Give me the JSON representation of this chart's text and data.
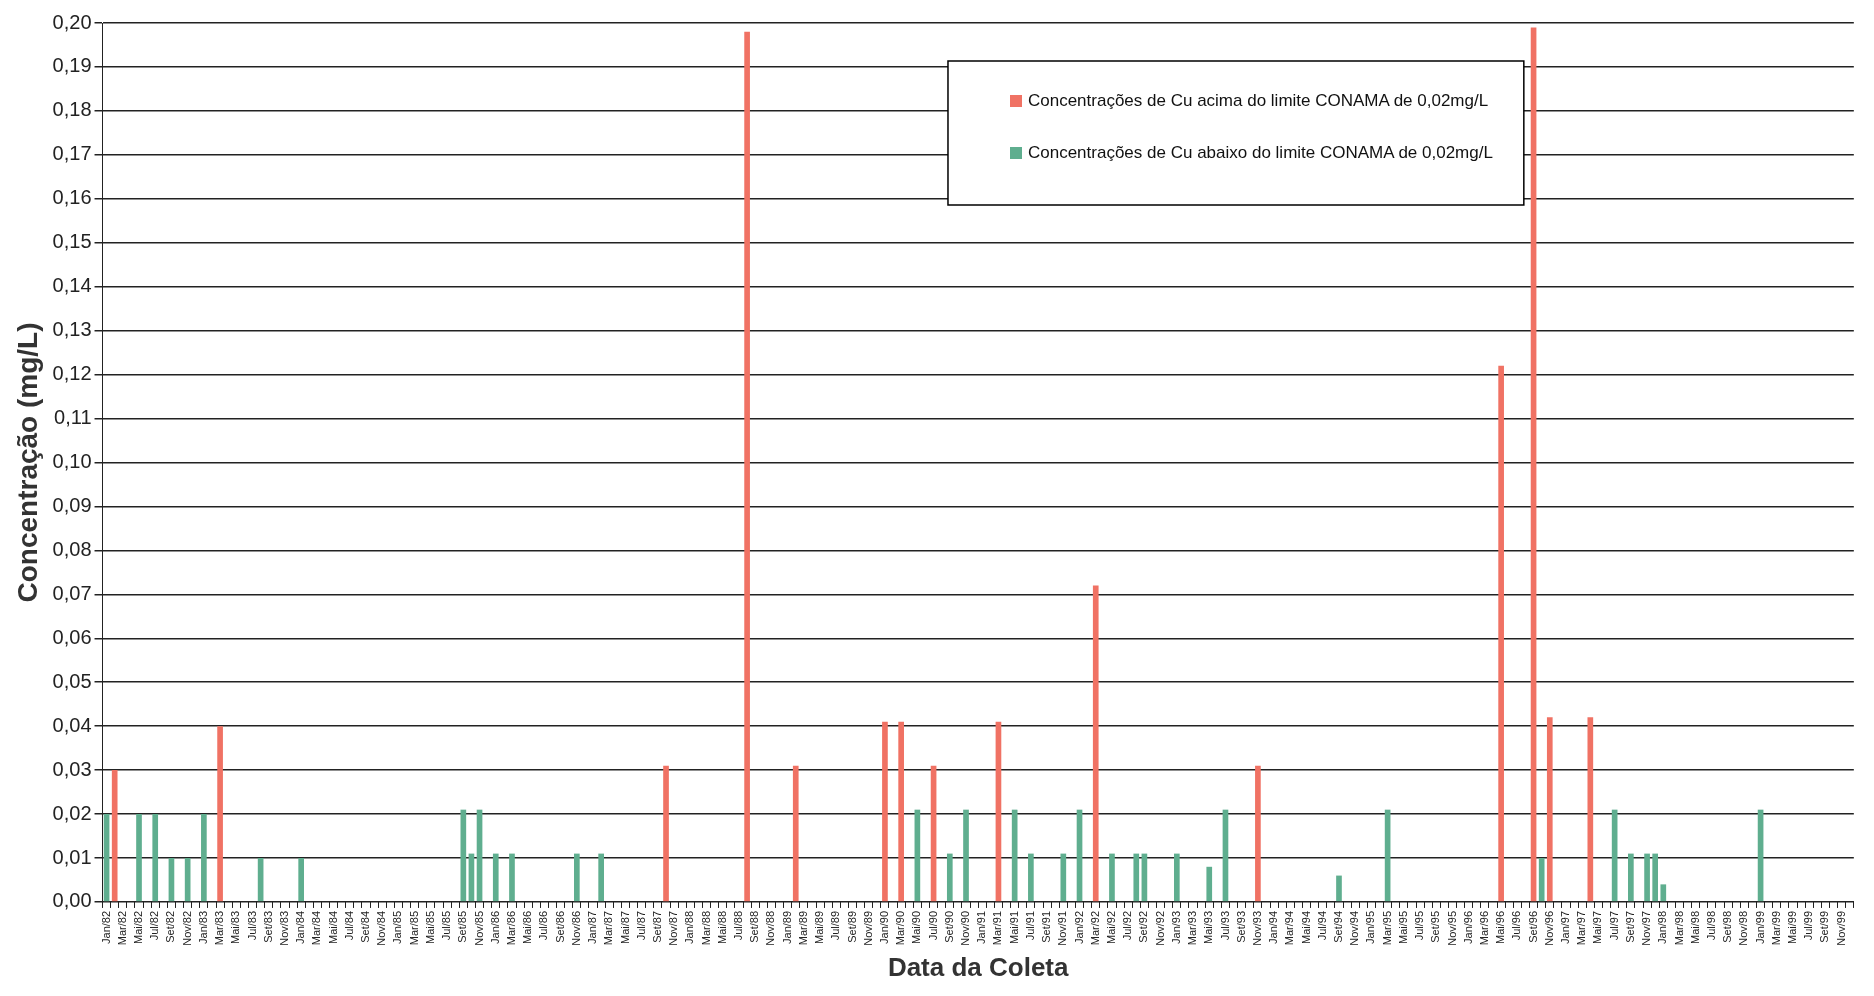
{
  "chart_data": {
    "type": "bar",
    "xlabel": "Data da Coleta",
    "ylabel": "Concentração (mg/L)",
    "categories": [
      "Jan/82",
      null,
      "Mar/82",
      null,
      "Mai/82",
      null,
      "Jul/82",
      null,
      "Set/82",
      null,
      "Nov/82",
      null,
      "Jan/83",
      null,
      "Mar/83",
      null,
      "Mai/83",
      null,
      "Jul/83",
      null,
      "Set/83",
      null,
      "Nov/83",
      null,
      "Jan/84",
      null,
      "Mar/84",
      null,
      "Mai/84",
      null,
      "Jul/84",
      null,
      "Set/84",
      null,
      "Nov/84",
      null,
      "Jan/85",
      null,
      "Mar/85",
      null,
      "Mai/85",
      null,
      "Jul/85",
      null,
      "Set/85",
      null,
      "Nov/85",
      null,
      "Jan/86",
      null,
      "Mar/86",
      null,
      "Mai/86",
      null,
      "Jul/86",
      null,
      "Set/86",
      null,
      "Nov/86",
      null,
      "Jan/87",
      null,
      "Mar/87",
      null,
      "Mai/87",
      null,
      "Jul/87",
      null,
      "Set/87",
      null,
      "Nov/87",
      null,
      "Jan/88",
      null,
      "Mar/88",
      null,
      "Mai/88",
      null,
      "Jul/88",
      null,
      "Set/88",
      null,
      "Nov/88",
      null,
      "Jan/89",
      null,
      "Mar/89",
      null,
      "Mai/89",
      null,
      "Jul/89",
      null,
      "Set/89",
      null,
      "Nov/89",
      null,
      "Jan/90",
      null,
      "Mar/90",
      null,
      "Mai/90",
      null,
      "Jul/90",
      null,
      "Set/90",
      null,
      "Nov/90",
      null,
      "Jan/91",
      null,
      "Mar/91",
      null,
      "Mai/91",
      null,
      "Jul/91",
      null,
      "Set/91",
      null,
      "Nov/91",
      null,
      "Jan/92",
      null,
      "Mar/92",
      null,
      "Mai/92",
      null,
      "Jul/92",
      null,
      "Set/92",
      null,
      "Nov/92",
      null,
      "Jan/93",
      null,
      "Mar/93",
      null,
      "Mai/93",
      null,
      "Jul/93",
      null,
      "Set/93",
      null,
      "Nov/93",
      null,
      "Jan/94",
      null,
      "Mar/94",
      null,
      "Mai/94",
      null,
      "Jul/94",
      null,
      "Set/94",
      null,
      "Nov/94",
      null,
      "Jan/95",
      null,
      "Mar/95",
      null,
      "Mai/95",
      null,
      "Jul/95",
      null,
      "Set/95",
      null,
      "Nov/95",
      null,
      "Jan/96",
      null,
      "Mar/96",
      null,
      "Mai/96",
      null,
      "Jul/96",
      null,
      "Set/96",
      null,
      "Nov/96",
      null,
      "Jan/97",
      null,
      "Mar/97",
      null,
      "Mai/97",
      null,
      "Jul/97",
      null,
      "Set/97",
      null,
      "Nov/97",
      null,
      "Jan/98",
      null,
      "Mar/98",
      null,
      "Mai/98",
      null,
      "Jul/98",
      null,
      "Set/98",
      null,
      "Nov/98",
      null,
      "Jan/99",
      null,
      "Mar/99",
      null,
      "Mai/99",
      null,
      "Jul/99",
      null,
      "Set/99",
      null,
      "Nov/99",
      null
    ],
    "series": [
      {
        "name": "Concentrações de Cu acima do limite CONAMA de 0,02mg/L",
        "color": "#f07264",
        "values": [
          null,
          0.03,
          null,
          null,
          null,
          null,
          null,
          null,
          null,
          null,
          null,
          null,
          null,
          null,
          0.04,
          null,
          null,
          null,
          null,
          null,
          null,
          null,
          null,
          null,
          null,
          null,
          null,
          null,
          null,
          null,
          null,
          null,
          null,
          null,
          null,
          null,
          null,
          null,
          null,
          null,
          null,
          null,
          null,
          null,
          null,
          null,
          null,
          null,
          null,
          null,
          null,
          null,
          null,
          null,
          null,
          null,
          null,
          null,
          null,
          null,
          null,
          null,
          null,
          null,
          null,
          null,
          null,
          null,
          null,
          0.031,
          null,
          null,
          null,
          null,
          null,
          null,
          null,
          null,
          null,
          0.198,
          null,
          null,
          null,
          null,
          null,
          0.031,
          null,
          null,
          null,
          null,
          null,
          null,
          null,
          null,
          null,
          null,
          0.041,
          null,
          0.041,
          null,
          null,
          null,
          0.031,
          null,
          null,
          null,
          null,
          null,
          null,
          null,
          0.041,
          null,
          null,
          null,
          null,
          null,
          null,
          null,
          null,
          null,
          null,
          null,
          0.072,
          null,
          null,
          null,
          null,
          null,
          null,
          null,
          null,
          null,
          null,
          null,
          null,
          null,
          null,
          null,
          null,
          null,
          null,
          null,
          0.031,
          null,
          null,
          null,
          null,
          null,
          null,
          null,
          null,
          null,
          null,
          null,
          null,
          null,
          null,
          null,
          null,
          null,
          null,
          null,
          null,
          null,
          null,
          null,
          null,
          null,
          null,
          null,
          null,
          null,
          0.122,
          null,
          null,
          null,
          0.199,
          null,
          0.042,
          null,
          null,
          null,
          null,
          0.042,
          null,
          null,
          null,
          null,
          null,
          null,
          null,
          null,
          null,
          null,
          null,
          null,
          null,
          null,
          null,
          null,
          null,
          null,
          null,
          null,
          null,
          null,
          null,
          null,
          null,
          null,
          null,
          null,
          null,
          null,
          null,
          null
        ]
      },
      {
        "name": "Concentrações de Cu abaixo do limite CONAMA de 0,02mg/L",
        "color": "#5fae8f",
        "values": [
          0.02,
          null,
          null,
          null,
          0.02,
          null,
          0.02,
          null,
          0.01,
          null,
          0.01,
          null,
          0.02,
          null,
          null,
          null,
          null,
          null,
          null,
          0.01,
          null,
          null,
          null,
          null,
          0.01,
          null,
          null,
          null,
          null,
          null,
          null,
          null,
          null,
          null,
          null,
          null,
          null,
          null,
          null,
          null,
          null,
          null,
          null,
          null,
          0.021,
          0.011,
          0.021,
          null,
          0.011,
          null,
          0.011,
          null,
          null,
          null,
          null,
          null,
          null,
          null,
          0.011,
          null,
          null,
          0.011,
          null,
          null,
          null,
          null,
          null,
          null,
          null,
          null,
          null,
          null,
          null,
          null,
          null,
          null,
          null,
          null,
          null,
          null,
          null,
          null,
          null,
          null,
          null,
          null,
          null,
          null,
          null,
          null,
          null,
          null,
          null,
          null,
          null,
          null,
          null,
          null,
          null,
          null,
          0.021,
          null,
          null,
          null,
          0.011,
          null,
          0.021,
          null,
          null,
          null,
          null,
          null,
          0.021,
          null,
          0.011,
          null,
          null,
          null,
          0.011,
          null,
          0.021,
          null,
          null,
          null,
          0.011,
          null,
          null,
          0.011,
          0.011,
          null,
          null,
          null,
          0.011,
          null,
          null,
          null,
          0.008,
          null,
          0.021,
          null,
          null,
          null,
          null,
          null,
          null,
          null,
          null,
          null,
          null,
          null,
          null,
          null,
          0.006,
          null,
          null,
          null,
          null,
          null,
          0.021,
          null,
          null,
          null,
          null,
          null,
          null,
          null,
          null,
          null,
          null,
          null,
          null,
          null,
          null,
          null,
          null,
          null,
          null,
          0.01,
          null,
          null,
          null,
          null,
          null,
          null,
          null,
          null,
          0.021,
          null,
          0.011,
          null,
          0.011,
          0.011,
          0.004,
          null,
          null,
          null,
          null,
          null,
          null,
          null,
          null,
          null,
          null,
          null,
          0.021,
          null,
          null,
          null,
          null,
          null,
          null,
          null,
          null,
          null,
          null,
          null
        ]
      }
    ],
    "ylim": [
      0,
      0.2
    ],
    "yticks": [
      {
        "value": 0,
        "label": "0,00"
      },
      {
        "value": 0.01,
        "label": "0,01"
      },
      {
        "value": 0.02,
        "label": "0,02"
      },
      {
        "value": 0.03,
        "label": "0,03"
      },
      {
        "value": 0.04,
        "label": "0,04"
      },
      {
        "value": 0.05,
        "label": "0,05"
      },
      {
        "value": 0.06,
        "label": "0,06"
      },
      {
        "value": 0.07,
        "label": "0,07"
      },
      {
        "value": 0.08,
        "label": "0,08"
      },
      {
        "value": 0.09,
        "label": "0,09"
      },
      {
        "value": 0.1,
        "label": "0,10"
      },
      {
        "value": 0.11,
        "label": "0,11"
      },
      {
        "value": 0.12,
        "label": "0,12"
      },
      {
        "value": 0.13,
        "label": "0,13"
      },
      {
        "value": 0.14,
        "label": "0,14"
      },
      {
        "value": 0.15,
        "label": "0,15"
      },
      {
        "value": 0.16,
        "label": "0,16"
      },
      {
        "value": 0.17,
        "label": "0,17"
      },
      {
        "value": 0.18,
        "label": "0,18"
      },
      {
        "value": 0.19,
        "label": "0,19"
      },
      {
        "value": 0.2,
        "label": "0,20"
      }
    ],
    "grid": "y",
    "legend": "top right"
  }
}
